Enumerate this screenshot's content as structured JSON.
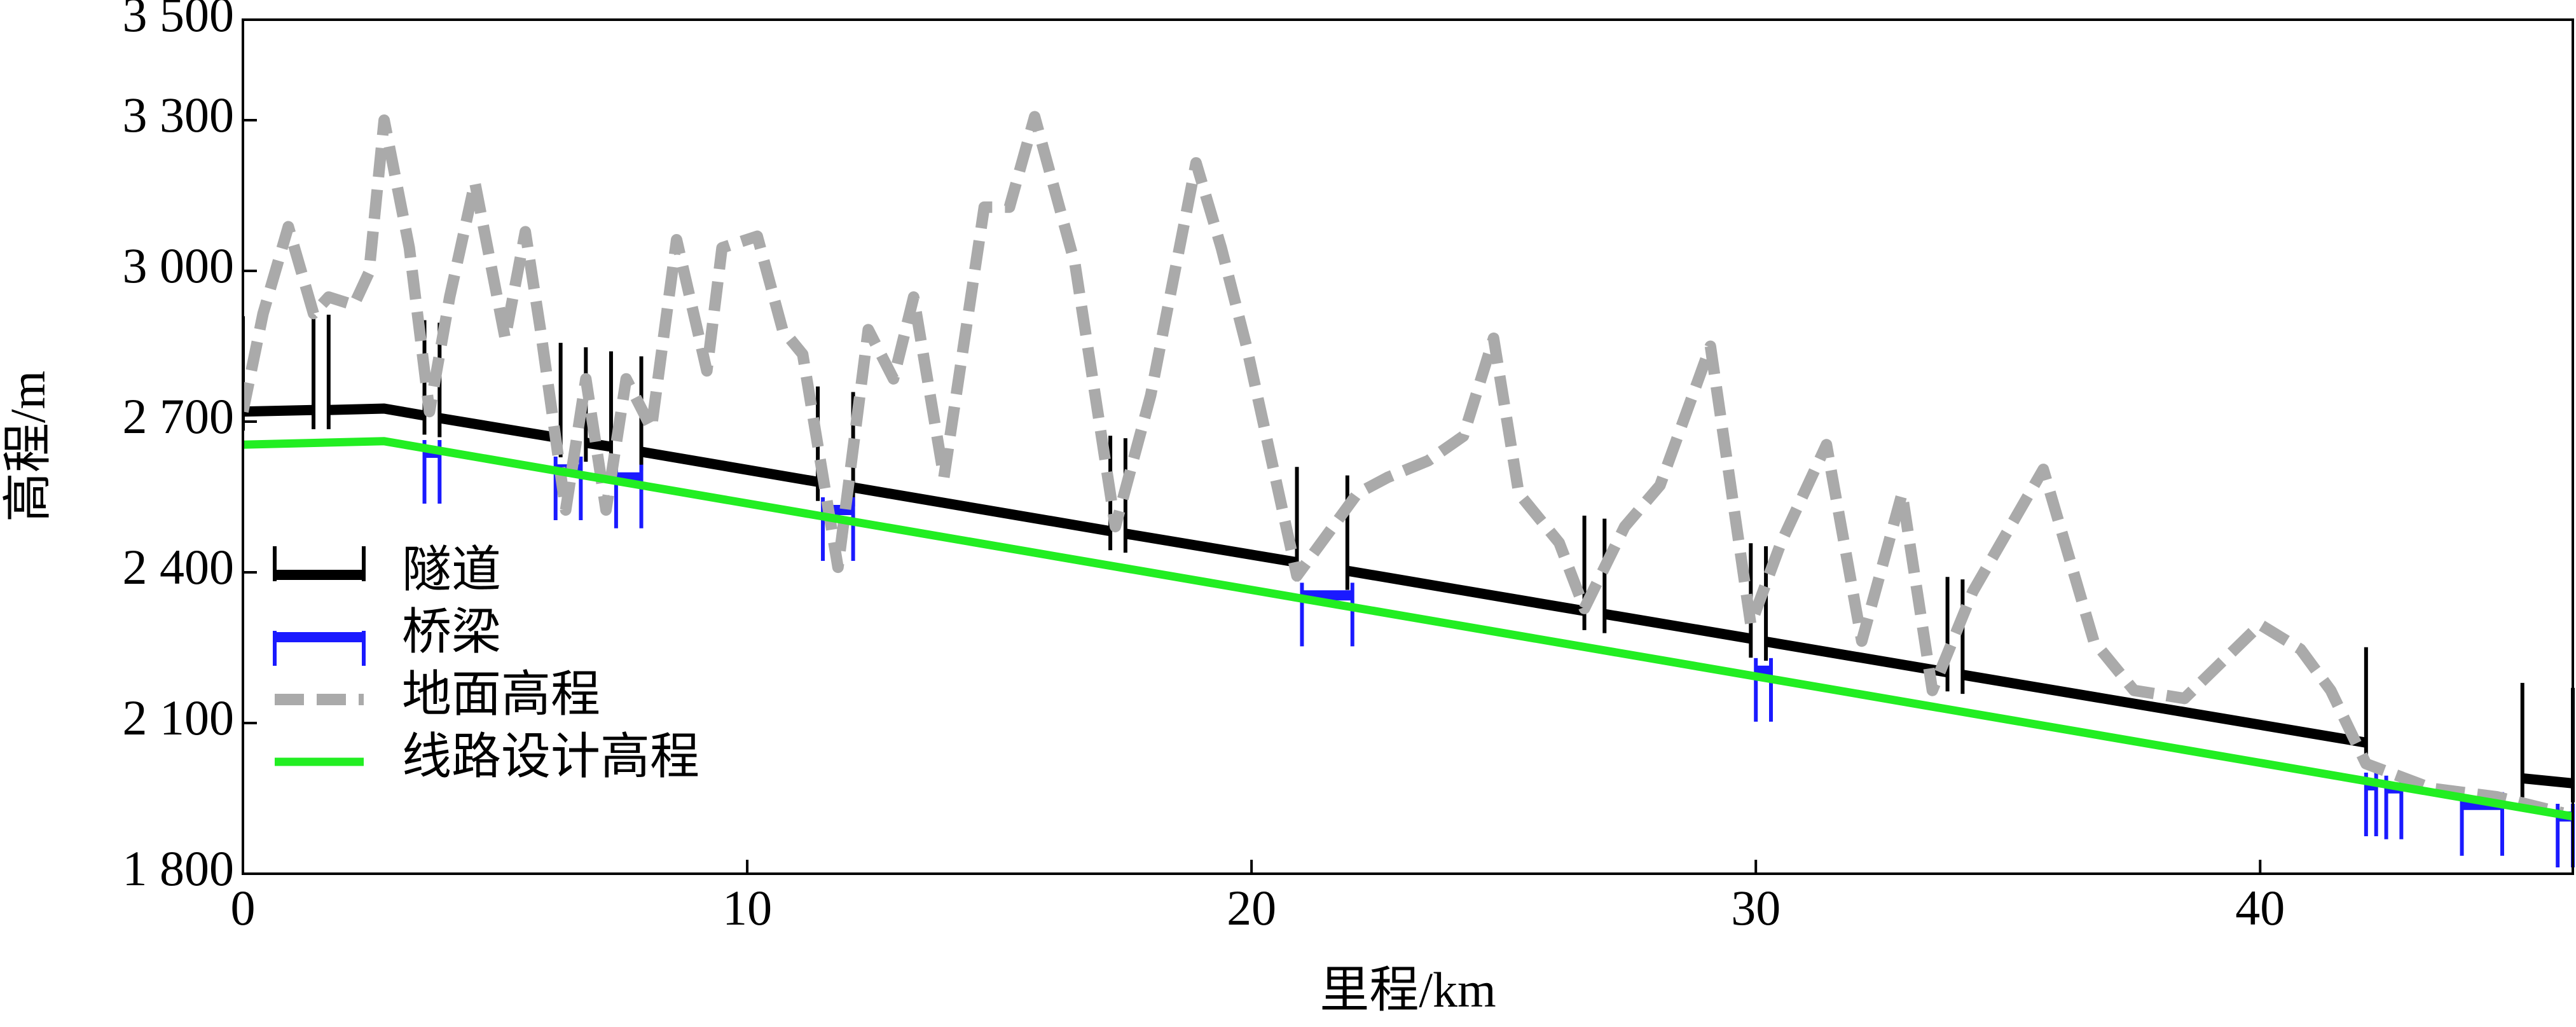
{
  "chart_data": {
    "type": "line",
    "x_label": "里程/km",
    "y_label": "高程/m",
    "xlim": [
      0,
      46.2
    ],
    "ylim": [
      1800,
      3500
    ],
    "xticks": [
      0,
      10,
      20,
      30,
      40
    ],
    "yticks": [
      {
        "value": 1800,
        "label": "1 800"
      },
      {
        "value": 2100,
        "label": "2 100"
      },
      {
        "value": 2400,
        "label": "2 400"
      },
      {
        "value": 2700,
        "label": "2 700"
      },
      {
        "value": 3000,
        "label": "3 000"
      },
      {
        "value": 3300,
        "label": "3 300"
      },
      {
        "value": 3500,
        "label": "3 500"
      }
    ],
    "legend": "lower left",
    "series": [
      {
        "name": "隧道",
        "color": "#000000",
        "linestyle": "solid",
        "markers": "end-ticks-up",
        "x": [
          0,
          1.4,
          null,
          1.7,
          2.8,
          3.6,
          null,
          3.9,
          6.3,
          null,
          6.8,
          7.3,
          null,
          7.9,
          11.4,
          null,
          12.1,
          17.2,
          null,
          17.5,
          20.9,
          null,
          21.9,
          26.6,
          null,
          27.0,
          29.9,
          null,
          30.2,
          33.8,
          null,
          34.1,
          42.1,
          null,
          45.2,
          46.2
        ],
        "values": [
          2720,
          2723,
          null,
          2723,
          2726,
          2712,
          null,
          2707,
          2667,
          null,
          2658,
          2650,
          null,
          2640,
          2580,
          null,
          2569,
          2482,
          null,
          2477,
          2420,
          null,
          2403,
          2323,
          null,
          2317,
          2268,
          null,
          2262,
          2201,
          null,
          2196,
          2061,
          null,
          1990,
          1980
        ]
      },
      {
        "name": "桥梁",
        "color": "#1a1aff",
        "linestyle": "solid",
        "markers": "end-ticks-down",
        "x": [
          3.6,
          3.9,
          null,
          6.2,
          6.7,
          null,
          7.4,
          7.9,
          null,
          11.5,
          12.1,
          null,
          21.0,
          22.0,
          null,
          30.0,
          30.3,
          null,
          42.1,
          42.3,
          null,
          42.5,
          42.8,
          null,
          44.0,
          44.8,
          null,
          45.9,
          46.2
        ],
        "values": [
          2638,
          2638,
          null,
          2605,
          2605,
          null,
          2589,
          2589,
          null,
          2524,
          2524,
          null,
          2354,
          2354,
          null,
          2204,
          2204,
          null,
          1976,
          1976,
          null,
          1970,
          1970,
          null,
          1937,
          1937,
          null,
          1914,
          1914
        ]
      },
      {
        "name": "地面高程",
        "color": "#aaaaaa",
        "linestyle": "dashed",
        "markers": "none",
        "x": [
          0,
          0.4,
          0.9,
          1.4,
          1.7,
          2.2,
          2.5,
          2.8,
          3.3,
          3.7,
          4.1,
          4.6,
          5.2,
          5.6,
          5.9,
          6.4,
          6.8,
          7.2,
          7.6,
          8.1,
          8.6,
          9.2,
          9.5,
          10.2,
          10.7,
          11.1,
          11.8,
          12.4,
          12.9,
          13.3,
          13.9,
          14.7,
          15.2,
          15.7,
          16.5,
          17.3,
          18.0,
          18.9,
          19.4,
          19.9,
          20.9,
          22.1,
          22.7,
          23.5,
          24.2,
          24.8,
          25.3,
          26.1,
          26.6,
          27.4,
          28.1,
          29.1,
          29.9,
          30.5,
          31.4,
          32.1,
          32.9,
          33.5,
          34.3,
          35.7,
          36.7,
          37.5,
          38.5,
          40.0,
          40.8,
          41.4,
          42.1,
          43.4,
          44.7,
          46.0
        ],
        "values": [
          2720,
          2915,
          3088,
          2915,
          2948,
          2932,
          2997,
          3300,
          3046,
          2720,
          2948,
          3176,
          2866,
          3078,
          2883,
          2524,
          2785,
          2524,
          2785,
          2687,
          3062,
          2801,
          3046,
          3069,
          2883,
          2834,
          2410,
          2883,
          2785,
          2948,
          2589,
          3127,
          3127,
          3307,
          3013,
          2491,
          2752,
          3215,
          3046,
          2850,
          2393,
          2557,
          2589,
          2622,
          2671,
          2866,
          2557,
          2459,
          2328,
          2491,
          2573,
          2850,
          2296,
          2459,
          2654,
          2263,
          2557,
          2165,
          2361,
          2605,
          2263,
          2165,
          2149,
          2296,
          2247,
          2165,
          2019,
          1970,
          1953,
          1921
        ]
      },
      {
        "name": "线路设计高程",
        "color": "#22ee22",
        "linestyle": "solid",
        "markers": "none",
        "x": [
          0,
          2.8,
          46.2
        ],
        "values": [
          2654,
          2661,
          1914
        ]
      }
    ]
  }
}
